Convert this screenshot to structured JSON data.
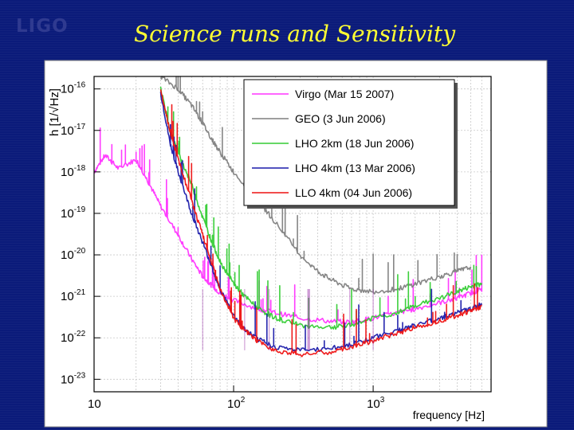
{
  "slide": {
    "logo_text": "LIGO",
    "title": "Science runs and Sensitivity"
  },
  "colors": {
    "background": "#0b1b7a",
    "title": "#ffff33",
    "plot_bg": "#ffffff",
    "grid": "#c8c8c8"
  },
  "chart_data": {
    "type": "line",
    "title": "",
    "xlabel": "frequency [Hz]",
    "ylabel": "h [1/√Hz]",
    "xscale": "log",
    "yscale": "log",
    "xlim": [
      10,
      7000
    ],
    "ylim": [
      5e-24,
      2e-16
    ],
    "x_ticks": [
      {
        "value": 10,
        "base": "10",
        "exp": ""
      },
      {
        "value": 100,
        "base": "10",
        "exp": "2"
      },
      {
        "value": 1000,
        "base": "10",
        "exp": "3"
      }
    ],
    "y_ticks": [
      {
        "value": 1e-16,
        "base": "10",
        "exp": "-16"
      },
      {
        "value": 1e-17,
        "base": "10",
        "exp": "-17"
      },
      {
        "value": 1e-18,
        "base": "10",
        "exp": "-18"
      },
      {
        "value": 1e-19,
        "base": "10",
        "exp": "-19"
      },
      {
        "value": 1e-20,
        "base": "10",
        "exp": "-20"
      },
      {
        "value": 1e-21,
        "base": "10",
        "exp": "-21"
      },
      {
        "value": 1e-22,
        "base": "10",
        "exp": "-22"
      },
      {
        "value": 1e-23,
        "base": "10",
        "exp": "-23"
      }
    ],
    "legend_position": "top-right",
    "series": [
      {
        "name": "Virgo (Mar 15 2007)",
        "color": "#ff33ff",
        "x": [
          10,
          12,
          15,
          20,
          25,
          30,
          40,
          50,
          60,
          70,
          80,
          100,
          150,
          200,
          300,
          500,
          700,
          1000,
          1500,
          2000,
          3000,
          4000,
          5000,
          6000
        ],
        "y": [
          1e-18,
          2.5e-18,
          1.2e-18,
          2e-18,
          5e-19,
          1.5e-19,
          3e-20,
          8e-21,
          3e-21,
          1.8e-21,
          1.2e-21,
          8e-22,
          5e-22,
          4e-22,
          3e-22,
          2.5e-22,
          2.4e-22,
          3e-22,
          4e-22,
          5e-22,
          7e-22,
          9e-22,
          1.2e-21,
          1.5e-21
        ]
      },
      {
        "name": "GEO (3 Jun 2006)",
        "color": "#7f7f7f",
        "x": [
          30,
          40,
          50,
          60,
          70,
          80,
          100,
          150,
          200,
          300,
          400,
          500,
          700,
          1000,
          1500,
          2000,
          3000,
          4000,
          5000
        ],
        "y": [
          2e-16,
          1e-16,
          4e-17,
          1.5e-17,
          6e-18,
          3e-18,
          1e-18,
          2e-19,
          6e-20,
          1e-20,
          4e-21,
          2.5e-21,
          1.5e-21,
          1.3e-21,
          1.5e-21,
          2e-21,
          3e-21,
          4e-21,
          5e-21
        ]
      },
      {
        "name": "LHO 2km (18 Jun 2006)",
        "color": "#33cc33",
        "x": [
          30,
          35,
          40,
          50,
          60,
          70,
          80,
          100,
          120,
          150,
          200,
          300,
          500,
          700,
          1000,
          1500,
          2000,
          3000,
          4000,
          5000,
          6000
        ],
        "y": [
          1e-16,
          1e-17,
          3e-18,
          5e-19,
          8e-20,
          2e-20,
          7e-21,
          2e-21,
          1e-21,
          5e-22,
          3e-22,
          2e-22,
          1.8e-22,
          2e-22,
          3e-22,
          4e-22,
          6e-22,
          9e-22,
          1.3e-21,
          1.7e-21,
          2e-21
        ]
      },
      {
        "name": "LHO 4km (13 Mar 2006)",
        "color": "#1a1aaa",
        "x": [
          30,
          35,
          40,
          50,
          60,
          70,
          80,
          100,
          120,
          150,
          200,
          300,
          500,
          700,
          1000,
          1500,
          2000,
          3000,
          4000,
          5000,
          6000
        ],
        "y": [
          8e-17,
          5e-18,
          1e-18,
          1e-19,
          2e-20,
          5e-21,
          1.5e-21,
          3.5e-22,
          1.6e-22,
          9e-23,
          6e-23,
          5e-23,
          5.5e-23,
          7e-23,
          1e-22,
          1.5e-22,
          2e-22,
          3e-22,
          4e-22,
          5e-22,
          6.5e-22
        ]
      },
      {
        "name": "LLO 4km (04 Jun 2006)",
        "color": "#ee1111",
        "x": [
          30,
          35,
          40,
          50,
          60,
          70,
          80,
          100,
          120,
          150,
          200,
          300,
          500,
          700,
          1000,
          1500,
          2000,
          3000,
          4000,
          5000,
          6000
        ],
        "y": [
          1e-16,
          1e-17,
          2e-18,
          2e-19,
          3e-20,
          6e-21,
          1.5e-21,
          3e-22,
          1.5e-22,
          8e-23,
          5e-23,
          4e-23,
          4.5e-23,
          6e-23,
          8.5e-23,
          1.3e-22,
          1.8e-22,
          2.6e-22,
          3.5e-22,
          4.5e-22,
          5.5e-22
        ]
      }
    ]
  }
}
